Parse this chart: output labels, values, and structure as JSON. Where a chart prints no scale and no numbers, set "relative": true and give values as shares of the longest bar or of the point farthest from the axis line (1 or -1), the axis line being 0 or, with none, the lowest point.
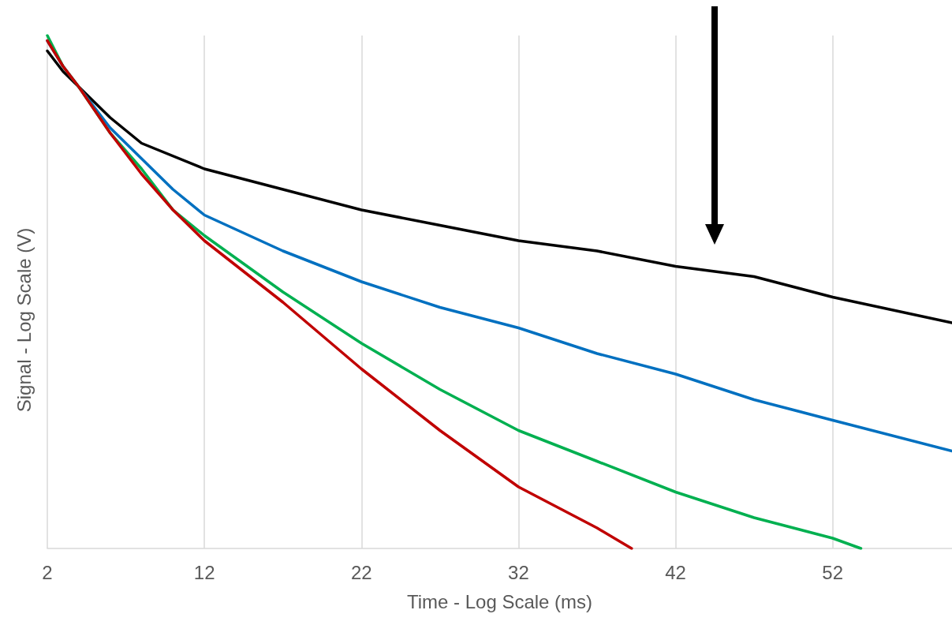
{
  "chart_data": {
    "type": "line",
    "xlabel": "Time - Log Scale (ms)",
    "ylabel": "Signal - Log Scale (V)",
    "relative": true,
    "xlim": [
      2,
      59.6
    ],
    "xticks": [
      2,
      12,
      22,
      32,
      42,
      52
    ],
    "grid": "x",
    "marker": "none",
    "line_style": "solid",
    "series": [
      {
        "color": "#000000",
        "x": [
          2,
          3,
          4,
          6,
          8,
          12,
          17,
          22,
          27,
          32,
          37,
          42,
          47,
          52,
          59.6
        ],
        "values": [
          0.97,
          0.93,
          0.9,
          0.84,
          0.79,
          0.74,
          0.7,
          0.66,
          0.63,
          0.6,
          0.58,
          0.55,
          0.53,
          0.49,
          0.44
        ]
      },
      {
        "color": "#0070c0",
        "x": [
          2,
          3,
          4,
          6,
          8,
          10,
          12,
          17,
          22,
          27,
          32,
          37,
          42,
          47,
          52,
          59.6
        ],
        "values": [
          0.99,
          0.94,
          0.9,
          0.82,
          0.76,
          0.7,
          0.65,
          0.58,
          0.52,
          0.47,
          0.43,
          0.38,
          0.34,
          0.29,
          0.25,
          0.19
        ]
      },
      {
        "color": "#00b050",
        "x": [
          2,
          3,
          4,
          6,
          8,
          10,
          12,
          17,
          22,
          27,
          32,
          37,
          42,
          47,
          52,
          53.8
        ],
        "values": [
          1,
          0.94,
          0.9,
          0.81,
          0.74,
          0.66,
          0.61,
          0.5,
          0.4,
          0.31,
          0.23,
          0.17,
          0.11,
          0.06,
          0.02,
          0
        ]
      },
      {
        "color": "#c00000",
        "x": [
          2,
          3,
          4,
          6,
          8,
          10,
          12,
          17,
          22,
          27,
          32,
          37,
          39.2
        ],
        "values": [
          0.99,
          0.94,
          0.9,
          0.81,
          0.73,
          0.66,
          0.6,
          0.48,
          0.35,
          0.23,
          0.12,
          0.04,
          0
        ]
      }
    ]
  }
}
